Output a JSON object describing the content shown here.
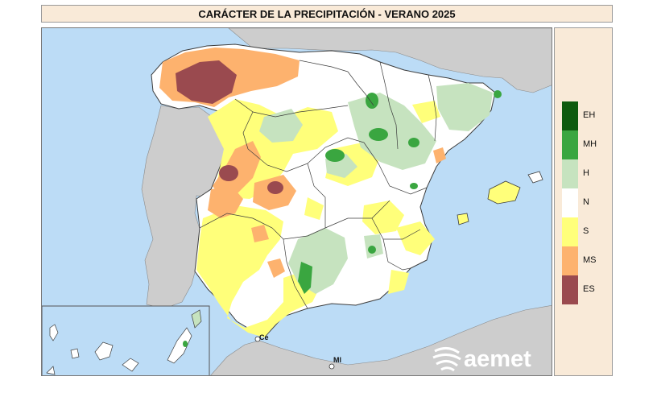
{
  "title": "CARÁCTER DE LA PRECIPITACIÓN - VERANO 2025",
  "legend": {
    "items": [
      {
        "code": "EH",
        "color": "#0e5a0e"
      },
      {
        "code": "MH",
        "color": "#3aa640"
      },
      {
        "code": "H",
        "color": "#c6e3bf"
      },
      {
        "code": "N",
        "color": "#ffffff"
      },
      {
        "code": "S",
        "color": "#ffff7a"
      },
      {
        "code": "MS",
        "color": "#fdb26e"
      },
      {
        "code": "ES",
        "color": "#9a4a4f"
      }
    ]
  },
  "map": {
    "sea_color": "#bcdcf6",
    "land_outside_color": "#cdcdcd",
    "city_labels": [
      {
        "id": "ceuta",
        "text": "Ce"
      },
      {
        "id": "melilla",
        "text": "Ml"
      }
    ]
  },
  "logo": {
    "text": "aemet",
    "icon": "aemet-logo-icon"
  }
}
